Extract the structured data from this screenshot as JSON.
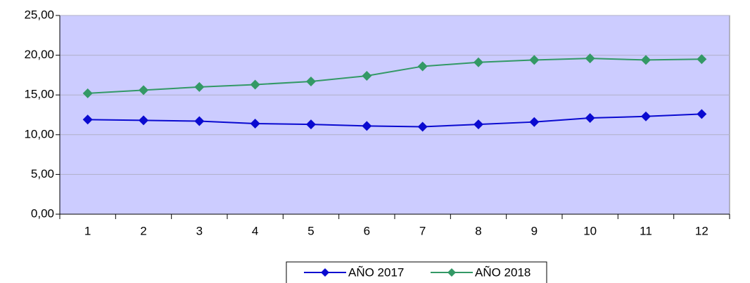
{
  "chart_data": {
    "type": "line",
    "categories": [
      "1",
      "2",
      "3",
      "4",
      "5",
      "6",
      "7",
      "8",
      "9",
      "10",
      "11",
      "12"
    ],
    "series": [
      {
        "name": "AÑO 2017",
        "color": "#0a0ad0",
        "values": [
          11.9,
          11.8,
          11.7,
          11.4,
          11.3,
          11.1,
          11.0,
          11.3,
          11.6,
          12.1,
          12.3,
          12.6
        ]
      },
      {
        "name": "AÑO 2018",
        "color": "#339966",
        "values": [
          15.2,
          15.6,
          16.0,
          16.3,
          16.7,
          17.4,
          18.6,
          19.1,
          19.4,
          19.6,
          19.4,
          19.5
        ]
      }
    ],
    "ylim": [
      0,
      25
    ],
    "yticks": [
      {
        "value": 0,
        "label": "0,00"
      },
      {
        "value": 5,
        "label": "5,00"
      },
      {
        "value": 10,
        "label": "10,00"
      },
      {
        "value": 15,
        "label": "15,00"
      },
      {
        "value": 20,
        "label": "20,00"
      },
      {
        "value": 25,
        "label": "25,00"
      }
    ],
    "grid": true,
    "legend": "bottom",
    "background": "#ccccff"
  }
}
